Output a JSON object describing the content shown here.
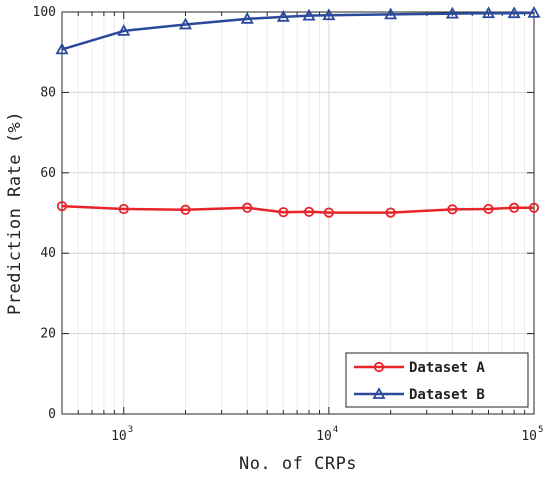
{
  "chart_data": {
    "type": "line",
    "xlabel": "No. of CRPs",
    "ylabel": "Prediction Rate (%)",
    "xscale": "log",
    "xlim": [
      500,
      100000
    ],
    "ylim": [
      0,
      100
    ],
    "yticks": [
      0,
      20,
      40,
      60,
      80,
      100
    ],
    "xticks": [
      {
        "value": 1000,
        "base": "10",
        "exp": "3"
      },
      {
        "value": 10000,
        "base": "10",
        "exp": "4"
      },
      {
        "value": 100000,
        "base": "10",
        "exp": "5"
      }
    ],
    "grid": true,
    "legend_position": "bottom-right",
    "x": [
      500,
      1000,
      2000,
      4000,
      6000,
      8000,
      10000,
      20000,
      40000,
      60000,
      80000,
      100000
    ],
    "series": [
      {
        "name": "Dataset A",
        "color": "#e8242a",
        "marker": "circle",
        "values": [
          51.7,
          51.0,
          50.8,
          51.3,
          50.2,
          50.3,
          50.1,
          50.1,
          50.9,
          51.0,
          51.3,
          51.3
        ]
      },
      {
        "name": "Dataset B",
        "color": "#2c4a9c",
        "marker": "triangle",
        "values": [
          90.7,
          95.3,
          96.9,
          98.3,
          98.8,
          99.1,
          99.2,
          99.4,
          99.6,
          99.7,
          99.7,
          99.8
        ]
      }
    ]
  }
}
